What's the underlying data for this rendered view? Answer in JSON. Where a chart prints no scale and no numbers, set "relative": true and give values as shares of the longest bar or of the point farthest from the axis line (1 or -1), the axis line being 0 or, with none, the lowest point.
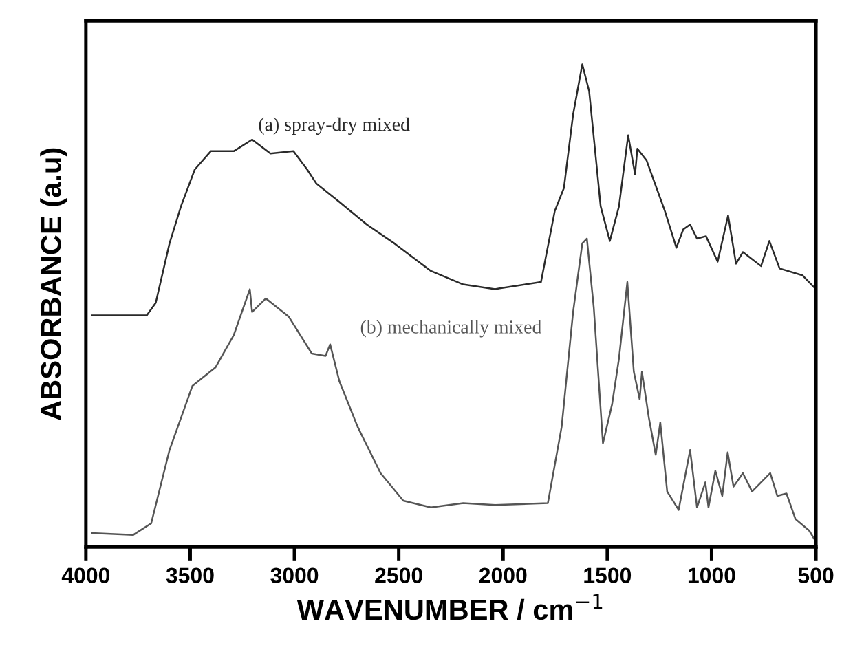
{
  "chart_data": {
    "type": "line",
    "relative": true,
    "xlabel": "WAVENUMBER / cm$^{−1}$",
    "ylabel": "ABSORBANCE (a.u)",
    "xlim": [
      4000,
      500
    ],
    "xticks": [
      4000,
      3500,
      3000,
      2500,
      2000,
      1500,
      1000,
      500
    ],
    "grid": false,
    "legend": false,
    "marker": "none",
    "line_style": "solid",
    "tick_labels": "x",
    "series": [
      {
        "name": "(a) spray-dry mixed",
        "color": "#2a2a2a",
        "x": [
          3972,
          3708,
          3665,
          3599,
          3544,
          3478,
          3401,
          3291,
          3203,
          3115,
          3005,
          2939,
          2895,
          2785,
          2653,
          2521,
          2346,
          2191,
          2038,
          2016,
          1818,
          1752,
          1708,
          1664,
          1620,
          1587,
          1532,
          1488,
          1444,
          1400,
          1367,
          1356,
          1312,
          1224,
          1169,
          1136,
          1103,
          1070,
          1027,
          971,
          921,
          883,
          850,
          763,
          723,
          674,
          565,
          500
        ],
        "values": [
          0.48,
          0.48,
          0.506,
          0.629,
          0.706,
          0.782,
          0.82,
          0.82,
          0.844,
          0.815,
          0.82,
          0.782,
          0.753,
          0.715,
          0.668,
          0.629,
          0.572,
          0.544,
          0.534,
          0.536,
          0.549,
          0.696,
          0.744,
          0.896,
          1.0,
          0.944,
          0.706,
          0.634,
          0.706,
          0.853,
          0.772,
          0.825,
          0.801,
          0.696,
          0.62,
          0.658,
          0.668,
          0.639,
          0.644,
          0.591,
          0.687,
          0.587,
          0.611,
          0.582,
          0.634,
          0.577,
          0.563,
          0.534
        ]
      },
      {
        "name": "(b) mechanically mixed",
        "color": "#555555",
        "x": [
          3972,
          3774,
          3687,
          3599,
          3489,
          3379,
          3291,
          3214,
          3203,
          3137,
          3027,
          2917,
          2851,
          2829,
          2785,
          2697,
          2587,
          2478,
          2346,
          2191,
          2038,
          1785,
          1719,
          1664,
          1620,
          1598,
          1565,
          1521,
          1477,
          1444,
          1404,
          1373,
          1345,
          1334,
          1301,
          1268,
          1246,
          1213,
          1158,
          1103,
          1070,
          1030,
          1015,
          982,
          949,
          923,
          895,
          850,
          806,
          719,
          685,
          641,
          598,
          532,
          500
        ],
        "values": [
          0.029,
          0.025,
          0.049,
          0.201,
          0.334,
          0.372,
          0.439,
          0.534,
          0.487,
          0.515,
          0.477,
          0.401,
          0.396,
          0.42,
          0.344,
          0.249,
          0.153,
          0.096,
          0.082,
          0.091,
          0.087,
          0.091,
          0.249,
          0.487,
          0.629,
          0.639,
          0.496,
          0.215,
          0.296,
          0.391,
          0.549,
          0.363,
          0.306,
          0.363,
          0.268,
          0.191,
          0.258,
          0.115,
          0.077,
          0.201,
          0.082,
          0.134,
          0.082,
          0.158,
          0.106,
          0.196,
          0.125,
          0.153,
          0.115,
          0.153,
          0.106,
          0.111,
          0.058,
          0.034,
          0.011
        ]
      }
    ]
  }
}
